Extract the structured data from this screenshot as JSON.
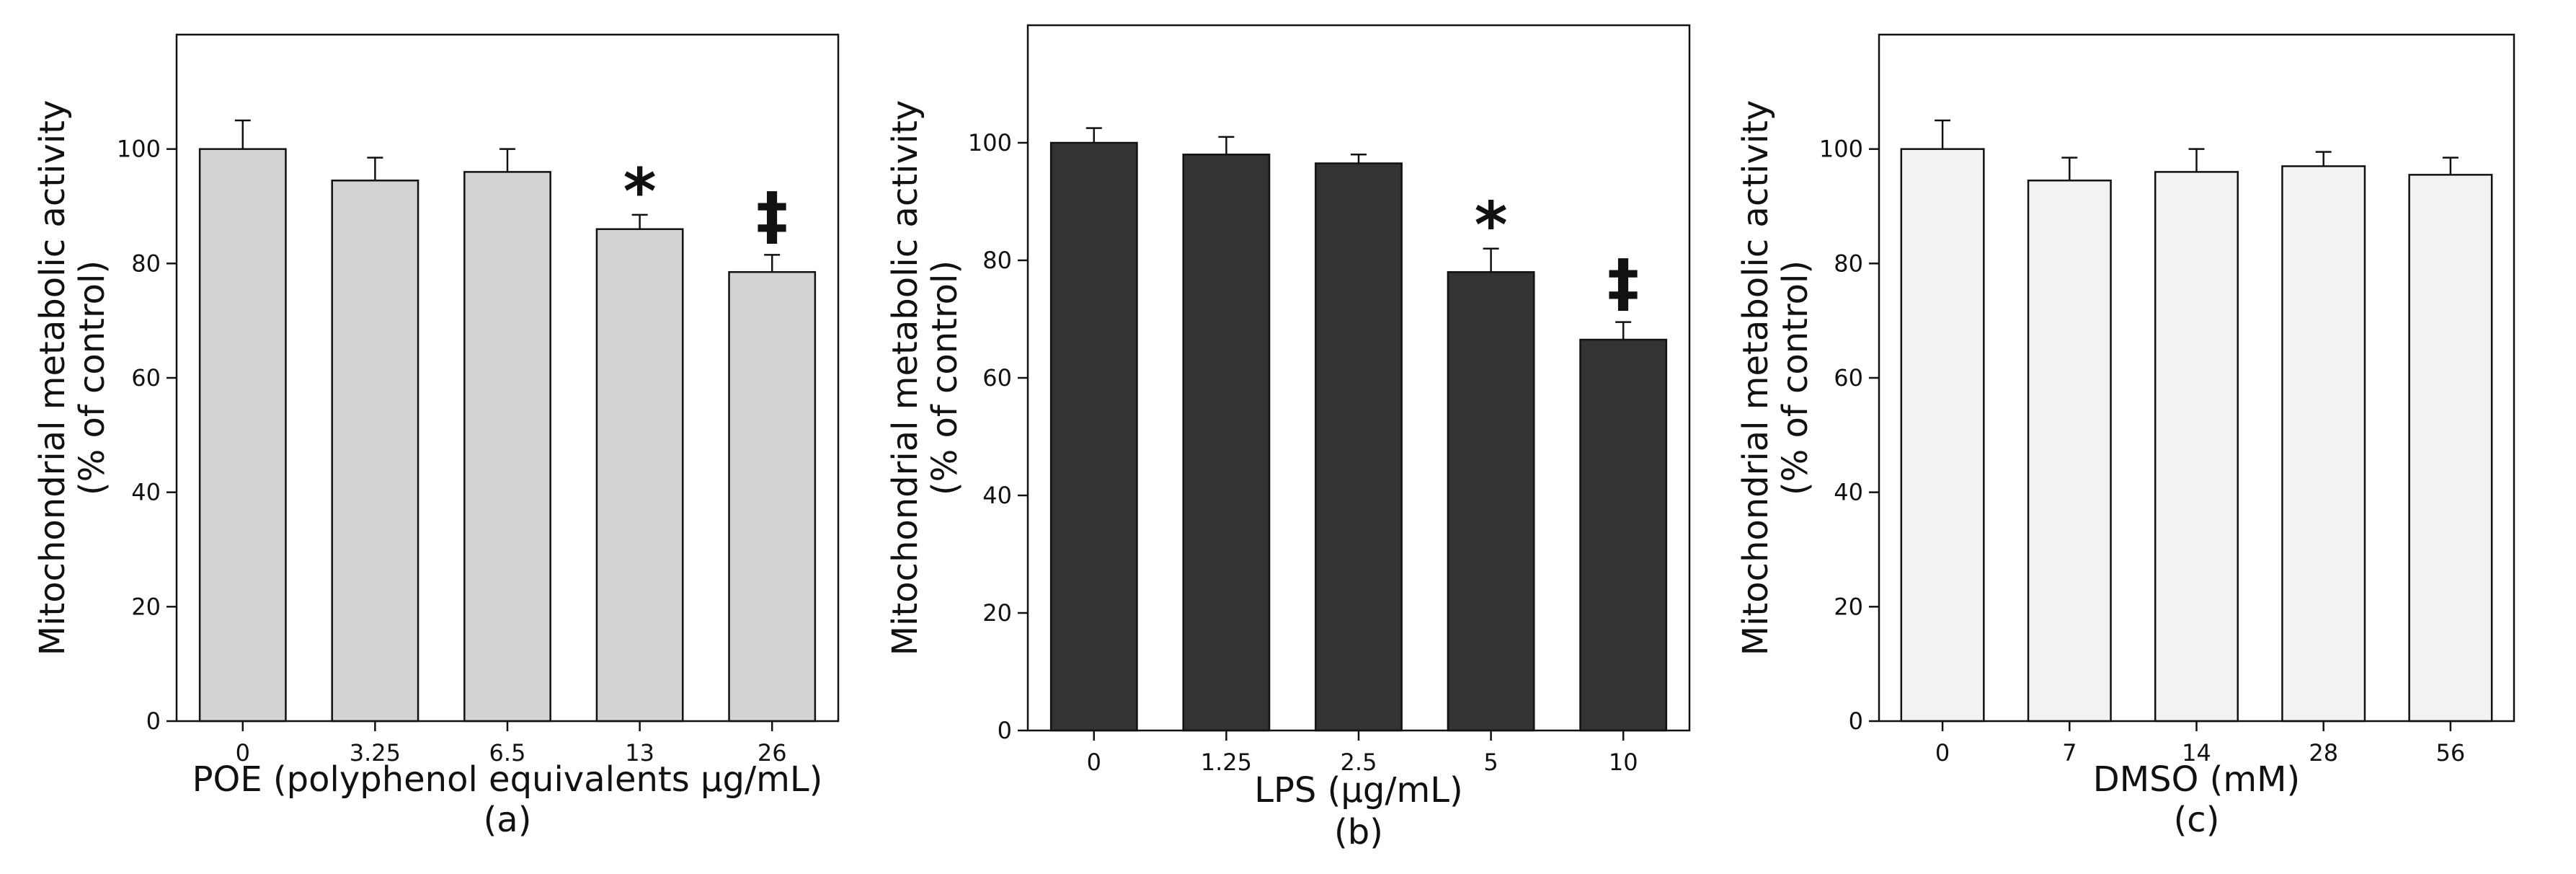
{
  "chart_data": [
    {
      "type": "bar",
      "panel_label": "(a)",
      "xlabel": "POE (polyphenol equivalents µg/mL)",
      "ylabel_line1": "Mitochondrial metabolic activity",
      "ylabel_line2": "(% of control)",
      "categories": [
        "0",
        "3.25",
        "6.5",
        "13",
        "26"
      ],
      "values": [
        100,
        94.5,
        96,
        86,
        78.5
      ],
      "errors": [
        5,
        4,
        4,
        2.5,
        3
      ],
      "annotations": [
        "",
        "",
        "",
        "*",
        "‡"
      ],
      "ylim": [
        0,
        120
      ],
      "yticks": [
        "0",
        "20",
        "40",
        "60",
        "80",
        "100"
      ],
      "bar_color": "#d3d3d3",
      "grid": false
    },
    {
      "type": "bar",
      "panel_label": "(b)",
      "xlabel": "LPS (µg/mL)",
      "ylabel_line1": "Mitochondrial metabolic activity",
      "ylabel_line2": "(% of control)",
      "categories": [
        "0",
        "1.25",
        "2.5",
        "5",
        "10"
      ],
      "values": [
        100,
        98,
        96.5,
        78,
        66.5
      ],
      "errors": [
        2.5,
        3,
        1.5,
        4,
        3
      ],
      "annotations": [
        "",
        "",
        "",
        "*",
        "‡"
      ],
      "ylim": [
        0,
        120
      ],
      "yticks": [
        "0",
        "20",
        "40",
        "60",
        "80",
        "100"
      ],
      "bar_color": "#333333",
      "grid": false
    },
    {
      "type": "bar",
      "panel_label": "(c)",
      "xlabel": "DMSO (mM)",
      "ylabel_line1": "Mitochondrial metabolic activity",
      "ylabel_line2": "(% of control)",
      "categories": [
        "0",
        "7",
        "14",
        "28",
        "56"
      ],
      "values": [
        100,
        94.5,
        96,
        97,
        95.5
      ],
      "errors": [
        5,
        4,
        4,
        2.5,
        3
      ],
      "annotations": [
        "",
        "",
        "",
        "",
        ""
      ],
      "ylim": [
        0,
        120
      ],
      "yticks": [
        "0",
        "20",
        "40",
        "60",
        "80",
        "100"
      ],
      "bar_color": "#f2f2f2",
      "grid": false
    }
  ]
}
